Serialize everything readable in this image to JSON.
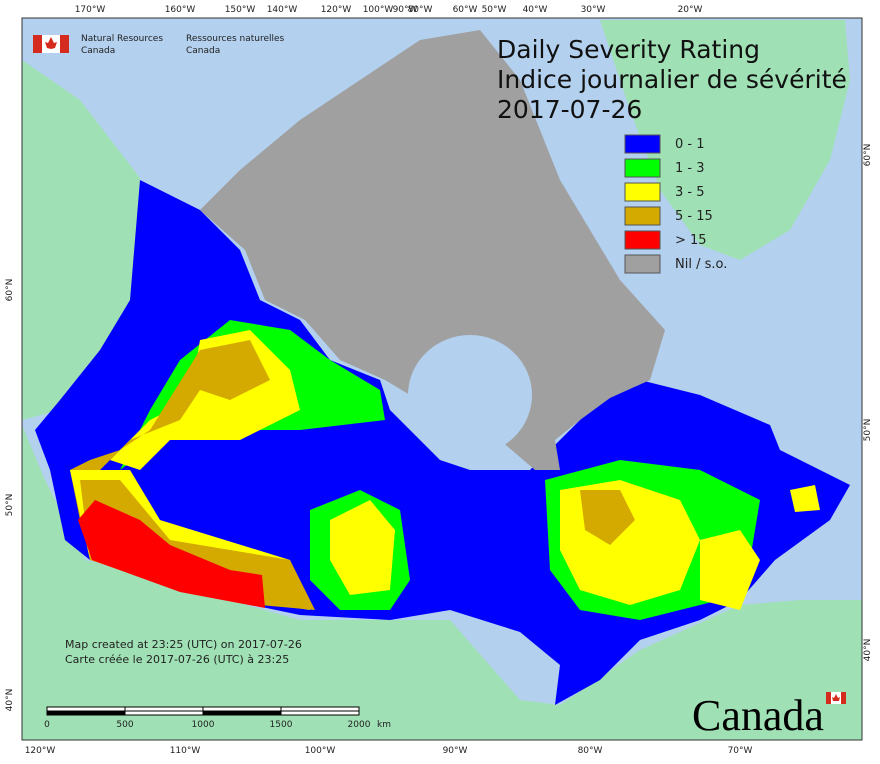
{
  "agency": {
    "en": [
      "Natural Resources",
      "Canada"
    ],
    "fr": [
      "Ressources naturelles",
      "Canada"
    ]
  },
  "title": {
    "en": "Daily Severity Rating",
    "fr": "Indice journalier de sévérité",
    "date": "2017-07-26"
  },
  "legend": [
    {
      "label": "0 - 1",
      "color": "#0000ff"
    },
    {
      "label": "1 - 3",
      "color": "#00ff00"
    },
    {
      "label": "3 - 5",
      "color": "#ffff00"
    },
    {
      "label": "5 - 15",
      "color": "#d4aa00"
    },
    {
      "label": "> 15",
      "color": "#ff0000"
    },
    {
      "label": "Nil / s.o.",
      "color": "#a0a0a0"
    }
  ],
  "graticule": {
    "top": [
      "170°W",
      "160°W",
      "150°W",
      "140°W",
      "120°W",
      "100°W",
      "90°W",
      "80°W",
      "60°W",
      "50°W",
      "40°W",
      "30°W",
      "20°W"
    ],
    "bottom": [
      "120°W",
      "110°W",
      "100°W",
      "90°W",
      "80°W",
      "70°W"
    ],
    "left": [
      "60°N",
      "50°N",
      "40°N"
    ],
    "right": [
      "60°N",
      "50°N",
      "40°N"
    ]
  },
  "footer": {
    "created_en": "Map created at 23:25 (UTC) on 2017-07-26",
    "created_fr": "Carte créée le 2017-07-26 (UTC) à 23:25"
  },
  "scale": {
    "ticks": [
      0,
      500,
      1000,
      1500,
      2000
    ],
    "unit": "km"
  },
  "wordmark": "Canada"
}
